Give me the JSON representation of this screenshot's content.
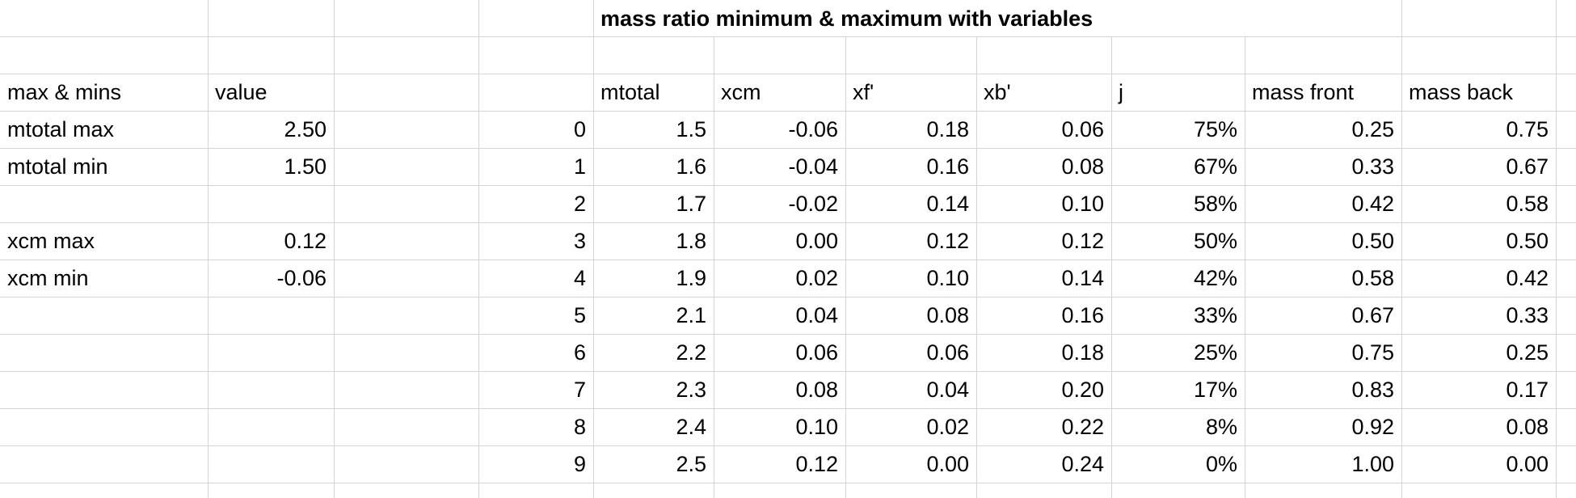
{
  "title": "mass ratio minimum & maximum with variables",
  "left_table": {
    "header": [
      "max & mins",
      "value"
    ],
    "groups": [
      [
        {
          "label": "mtotal max",
          "value": "2.50"
        },
        {
          "label": "mtotal min",
          "value": "1.50"
        }
      ],
      [
        {
          "label": "xcm max",
          "value": "0.12"
        },
        {
          "label": "xcm min",
          "value": "-0.06"
        }
      ]
    ]
  },
  "right_table": {
    "header": [
      "mtotal",
      "xcm",
      "xf'",
      "xb'",
      "j",
      "mass front",
      "mass back"
    ],
    "rows": [
      [
        "0",
        "1.5",
        "-0.06",
        "0.18",
        "0.06",
        "75%",
        "0.25",
        "0.75"
      ],
      [
        "1",
        "1.6",
        "-0.04",
        "0.16",
        "0.08",
        "67%",
        "0.33",
        "0.67"
      ],
      [
        "2",
        "1.7",
        "-0.02",
        "0.14",
        "0.10",
        "58%",
        "0.42",
        "0.58"
      ],
      [
        "3",
        "1.8",
        "0.00",
        "0.12",
        "0.12",
        "50%",
        "0.50",
        "0.50"
      ],
      [
        "4",
        "1.9",
        "0.02",
        "0.10",
        "0.14",
        "42%",
        "0.58",
        "0.42"
      ],
      [
        "5",
        "2.1",
        "0.04",
        "0.08",
        "0.16",
        "33%",
        "0.67",
        "0.33"
      ],
      [
        "6",
        "2.2",
        "0.06",
        "0.06",
        "0.18",
        "25%",
        "0.75",
        "0.25"
      ],
      [
        "7",
        "2.3",
        "0.08",
        "0.04",
        "0.20",
        "17%",
        "0.83",
        "0.17"
      ],
      [
        "8",
        "2.4",
        "0.10",
        "0.02",
        "0.22",
        "8%",
        "0.92",
        "0.08"
      ],
      [
        "9",
        "2.5",
        "0.12",
        "0.00",
        "0.24",
        "0%",
        "1.00",
        "0.00"
      ]
    ]
  }
}
